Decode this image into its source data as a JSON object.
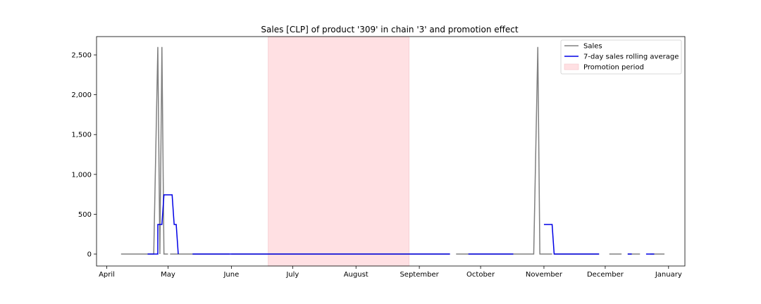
{
  "chart_data": {
    "type": "line",
    "title": "Sales [CLP] of product '309' in chain '3' and promotion effect",
    "xlabel": "",
    "ylabel": "",
    "x_ticks": [
      {
        "date": "2021-04-01",
        "label": "April"
      },
      {
        "date": "2021-05-01",
        "label": "May"
      },
      {
        "date": "2021-06-01",
        "label": "June"
      },
      {
        "date": "2021-07-01",
        "label": "July"
      },
      {
        "date": "2021-08-01",
        "label": "August"
      },
      {
        "date": "2021-09-01",
        "label": "September"
      },
      {
        "date": "2021-10-01",
        "label": "October"
      },
      {
        "date": "2021-11-01",
        "label": "November"
      },
      {
        "date": "2021-12-01",
        "label": "December"
      },
      {
        "date": "2022-01-01",
        "label": "January"
      }
    ],
    "y_ticks": [
      {
        "value": 0,
        "label": "0"
      },
      {
        "value": 500,
        "label": "500"
      },
      {
        "value": 1000,
        "label": "1,000"
      },
      {
        "value": 1500,
        "label": "1,500"
      },
      {
        "value": 2000,
        "label": "2,000"
      },
      {
        "value": 2500,
        "label": "2,500"
      }
    ],
    "xlim": [
      "2021-03-27",
      "2022-01-09"
    ],
    "ylim": [
      -150,
      2730
    ],
    "grid": false,
    "legend_position": "top-right",
    "promotion_period": {
      "start": "2021-06-19",
      "end": "2021-08-27",
      "color": "#ffe0e3"
    },
    "series": [
      {
        "name": "Sales",
        "color": "#808080",
        "segments": [
          [
            [
              "2021-04-08",
              0
            ],
            [
              "2021-04-24",
              0
            ],
            [
              "2021-04-26",
              2600
            ],
            [
              "2021-04-27",
              0
            ],
            [
              "2021-04-28",
              2600
            ],
            [
              "2021-04-29",
              0
            ],
            [
              "2021-05-01",
              0
            ]
          ],
          [
            [
              "2021-05-02",
              0
            ],
            [
              "2021-05-31",
              0
            ]
          ],
          [
            [
              "2021-06-01",
              0
            ],
            [
              "2021-09-16",
              0
            ]
          ],
          [
            [
              "2021-09-19",
              0
            ],
            [
              "2021-10-27",
              0
            ],
            [
              "2021-10-29",
              2600
            ],
            [
              "2021-10-30",
              0
            ],
            [
              "2021-11-05",
              0
            ]
          ],
          [
            [
              "2021-11-06",
              0
            ],
            [
              "2021-11-28",
              0
            ]
          ],
          [
            [
              "2021-12-03",
              0
            ],
            [
              "2021-12-09",
              0
            ]
          ],
          [
            [
              "2021-12-12",
              0
            ],
            [
              "2021-12-18",
              0
            ]
          ],
          [
            [
              "2021-12-23",
              0
            ],
            [
              "2021-12-30",
              0
            ]
          ]
        ]
      },
      {
        "name": "7-day sales rolling average",
        "color": "#0000e6",
        "segments": [
          [
            [
              "2021-04-21",
              0
            ],
            [
              "2021-04-26",
              0
            ],
            [
              "2021-04-26",
              371
            ],
            [
              "2021-04-28",
              371
            ],
            [
              "2021-04-29",
              743
            ],
            [
              "2021-05-03",
              743
            ],
            [
              "2021-05-04",
              371
            ],
            [
              "2021-05-05",
              371
            ],
            [
              "2021-05-06",
              0
            ]
          ],
          [
            [
              "2021-05-13",
              0
            ],
            [
              "2021-09-16",
              0
            ]
          ],
          [
            [
              "2021-09-25",
              0
            ],
            [
              "2021-10-17",
              0
            ]
          ],
          [
            [
              "2021-11-01",
              371
            ],
            [
              "2021-11-05",
              371
            ],
            [
              "2021-11-06",
              0
            ],
            [
              "2021-11-28",
              0
            ]
          ],
          [
            [
              "2021-12-12",
              0
            ],
            [
              "2021-12-14",
              0
            ]
          ],
          [
            [
              "2021-12-21",
              0
            ],
            [
              "2021-12-25",
              0
            ]
          ]
        ]
      }
    ],
    "legend": [
      {
        "label": "Sales",
        "kind": "line",
        "color": "#808080"
      },
      {
        "label": "7-day sales rolling average",
        "kind": "line",
        "color": "#0000e6"
      },
      {
        "label": "Promotion period",
        "kind": "patch",
        "color": "#ffe0e3"
      }
    ]
  }
}
